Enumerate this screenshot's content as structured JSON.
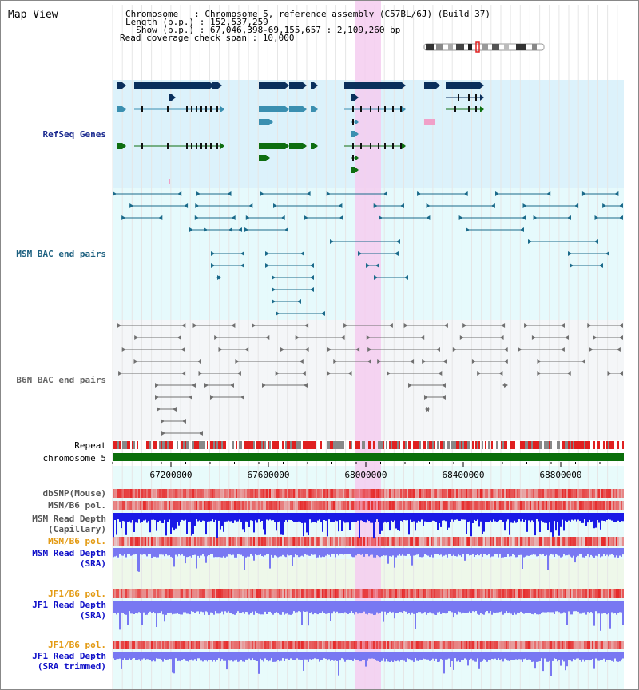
{
  "app": {
    "title": "Map View"
  },
  "header": {
    "chromosome_line": "Chromosome   : Chromosome 5, reference assembly (C57BL/6J) (Build 37)",
    "length_line": "Length (b.p.) : 152,537,259",
    "show_line": "  Show (b.p.) : 67,046,398-69,155,657 : 2,109,260 bp",
    "coverage_line": "Read coverage check span : 10,000"
  },
  "tracks": {
    "refseq": "RefSeq Genes",
    "msm_bac": "MSM BAC end pairs",
    "b6n_bac": "B6N BAC end pairs",
    "repeat": "Repeat",
    "chromosome": "chromosome 5",
    "dbsnp": "dbSNP(Mouse)",
    "msm_b6_pol": "MSM/B6 pol.",
    "msm_depth_cap_1": "MSM Read Depth",
    "msm_depth_cap_2": "(Capillary)",
    "msm_b6_pol_sra": "MSM/B6 pol.",
    "msm_depth_sra_1": "MSM Read Depth",
    "msm_depth_sra_2": "(SRA)",
    "jf1_b6_pol": "JF1/B6 pol.",
    "jf1_depth_sra_1": "JF1 Read Depth",
    "jf1_depth_sra_2": "(SRA)",
    "jf1_b6_pol_trim": "JF1/B6 pol.",
    "jf1_depth_trim_1": "JF1 Read Depth",
    "jf1_depth_trim_2": "(SRA trimmed)"
  },
  "axis": {
    "ticks": [
      "67200000",
      "67600000",
      "68000000",
      "68400000",
      "68800000"
    ]
  },
  "colors": {
    "refseq_bg": "#dcf2fb",
    "msm_bg": "#e6fafc",
    "b6n_bg": "#f4f6f8",
    "gene_dark": "#0a2f5c",
    "gene_teal": "#3a8fb0",
    "gene_green": "#0e6e10",
    "bac_msm": "#1a6a8a",
    "bac_b6n": "#707070",
    "highlight": "#f5cdf0",
    "chrom_bar": "#0b6e0b",
    "depth_dark": "#1a1ae6",
    "depth_light": "#7878f2",
    "orange_label": "#e39a12",
    "blue_label": "#1010c8"
  }
}
